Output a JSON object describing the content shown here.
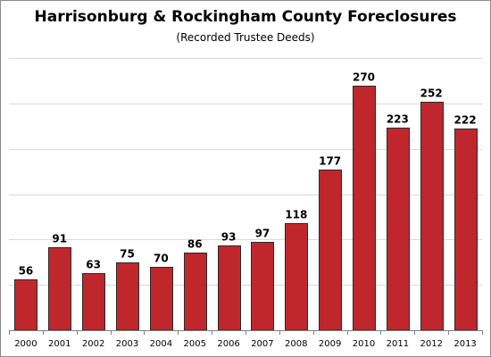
{
  "chart_data": {
    "type": "bar",
    "title": "Harrisonburg & Rockingham County Foreclosures",
    "subtitle": "(Recorded Trustee Deeds)",
    "categories": [
      "2000",
      "2001",
      "2002",
      "2003",
      "2004",
      "2005",
      "2006",
      "2007",
      "2008",
      "2009",
      "2010",
      "2011",
      "2012",
      "2013"
    ],
    "values": [
      56,
      91,
      63,
      75,
      70,
      86,
      93,
      97,
      118,
      177,
      270,
      223,
      252,
      222
    ],
    "xlabel": "",
    "ylabel": "",
    "ylim": [
      0,
      300
    ],
    "gridlines": [
      50,
      100,
      150,
      200,
      250,
      300
    ],
    "grid": true,
    "show_y_axis_labels": false,
    "data_labels": true,
    "legend": "none",
    "colors": {
      "bar": "#c0272d",
      "bar_outline": "#2a2a2a",
      "grid": "#d9d9d9"
    }
  }
}
